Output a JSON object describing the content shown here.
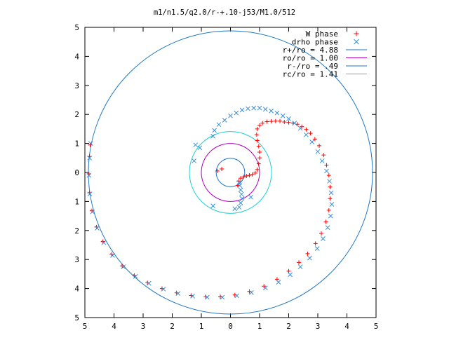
{
  "chart_data": {
    "type": "scatter",
    "title": "m1/n1.5/q2.0/r-+.10-j53/M1.0/512",
    "xlim": [
      -5,
      5
    ],
    "ylim": [
      -5,
      5
    ],
    "x_ticks": [
      -5,
      -4,
      -3,
      -2,
      -1,
      0,
      1,
      2,
      3,
      4,
      5
    ],
    "y_ticks": [
      -5,
      -4,
      -3,
      -2,
      -1,
      0,
      1,
      2,
      3,
      4,
      5
    ],
    "x_tick_labels": [
      "5",
      "4",
      "3",
      "2",
      "1",
      "0",
      "1",
      "2",
      "3",
      "4",
      "5"
    ],
    "y_tick_labels": [
      "5",
      "4",
      "3",
      "2",
      "1",
      "0",
      "1",
      "2",
      "3",
      "4",
      "5"
    ],
    "grid": false,
    "legend_position": "top-right",
    "series": [
      {
        "name": "W phase",
        "kind": "points",
        "marker": "plus",
        "color": "#ff0000",
        "points": [
          [
            0.25,
            -0.45
          ],
          [
            0.28,
            -0.3
          ],
          [
            0.35,
            -0.2
          ],
          [
            0.45,
            -0.15
          ],
          [
            0.55,
            -0.12
          ],
          [
            0.65,
            -0.1
          ],
          [
            0.75,
            -0.07
          ],
          [
            0.85,
            -0.02
          ],
          [
            0.92,
            0.1
          ],
          [
            0.97,
            0.3
          ],
          [
            1.0,
            0.5
          ],
          [
            1.0,
            0.7
          ],
          [
            0.97,
            0.9
          ],
          [
            0.92,
            1.1
          ],
          [
            0.9,
            1.3
          ],
          [
            0.92,
            1.5
          ],
          [
            1.0,
            1.62
          ],
          [
            1.1,
            1.7
          ],
          [
            1.25,
            1.75
          ],
          [
            1.4,
            1.76
          ],
          [
            1.55,
            1.77
          ],
          [
            1.7,
            1.77
          ],
          [
            1.85,
            1.74
          ],
          [
            2.0,
            1.72
          ],
          [
            2.15,
            1.7
          ],
          [
            2.3,
            1.66
          ],
          [
            2.45,
            1.58
          ],
          [
            2.6,
            1.48
          ],
          [
            2.75,
            1.35
          ],
          [
            2.9,
            1.15
          ],
          [
            3.05,
            0.92
          ],
          [
            3.2,
            0.6
          ],
          [
            3.3,
            0.25
          ],
          [
            3.38,
            -0.1
          ],
          [
            3.42,
            -0.5
          ],
          [
            3.42,
            -0.9
          ],
          [
            3.38,
            -1.3
          ],
          [
            3.28,
            -1.7
          ],
          [
            3.12,
            -2.1
          ],
          [
            2.92,
            -2.45
          ],
          [
            2.65,
            -2.8
          ],
          [
            2.35,
            -3.1
          ],
          [
            2.0,
            -3.4
          ],
          [
            1.6,
            -3.68
          ],
          [
            1.15,
            -3.92
          ],
          [
            0.65,
            -4.1
          ],
          [
            0.15,
            -4.22
          ],
          [
            -0.35,
            -4.28
          ],
          [
            -0.85,
            -4.28
          ],
          [
            -1.35,
            -4.24
          ],
          [
            -1.85,
            -4.15
          ],
          [
            -2.35,
            -4.0
          ],
          [
            -2.85,
            -3.8
          ],
          [
            -3.3,
            -3.55
          ],
          [
            -3.72,
            -3.22
          ],
          [
            -4.08,
            -2.82
          ],
          [
            -4.38,
            -2.38
          ],
          [
            -4.6,
            -1.88
          ],
          [
            -4.76,
            -1.32
          ],
          [
            -4.84,
            -0.7
          ],
          [
            -4.86,
            -0.05
          ],
          [
            -4.84,
            0.55
          ],
          [
            -4.82,
            0.95
          ],
          [
            -0.45,
            0.05
          ],
          [
            -0.3,
            0.12
          ]
        ]
      },
      {
        "name": "drho phase",
        "kind": "points",
        "marker": "cross",
        "color": "#3a8fd9",
        "points": [
          [
            0.3,
            -1.2
          ],
          [
            0.35,
            -1.05
          ],
          [
            0.4,
            -0.9
          ],
          [
            0.38,
            -0.75
          ],
          [
            0.35,
            -0.6
          ],
          [
            0.32,
            -0.45
          ],
          [
            0.3,
            -0.35
          ],
          [
            0.7,
            -0.85
          ],
          [
            -0.6,
            1.25
          ],
          [
            -0.55,
            1.45
          ],
          [
            -0.4,
            1.65
          ],
          [
            -0.2,
            1.8
          ],
          [
            0.0,
            1.95
          ],
          [
            0.2,
            2.05
          ],
          [
            0.4,
            2.15
          ],
          [
            0.6,
            2.2
          ],
          [
            0.8,
            2.22
          ],
          [
            1.0,
            2.22
          ],
          [
            1.2,
            2.18
          ],
          [
            1.4,
            2.12
          ],
          [
            1.6,
            2.05
          ],
          [
            1.8,
            1.95
          ],
          [
            2.0,
            1.85
          ],
          [
            2.2,
            1.7
          ],
          [
            2.4,
            1.52
          ],
          [
            2.6,
            1.3
          ],
          [
            2.8,
            1.05
          ],
          [
            3.0,
            0.72
          ],
          [
            3.15,
            0.4
          ],
          [
            3.3,
            0.05
          ],
          [
            3.4,
            -0.3
          ],
          [
            3.46,
            -0.7
          ],
          [
            3.48,
            -1.1
          ],
          [
            3.44,
            -1.5
          ],
          [
            3.34,
            -1.9
          ],
          [
            3.18,
            -2.28
          ],
          [
            2.98,
            -2.62
          ],
          [
            2.72,
            -2.95
          ],
          [
            2.4,
            -3.25
          ],
          [
            2.05,
            -3.52
          ],
          [
            1.65,
            -3.78
          ],
          [
            1.2,
            -3.98
          ],
          [
            0.72,
            -4.14
          ],
          [
            0.22,
            -4.25
          ],
          [
            -0.28,
            -4.3
          ],
          [
            -0.8,
            -4.3
          ],
          [
            -1.3,
            -4.26
          ],
          [
            -1.8,
            -4.17
          ],
          [
            -2.3,
            -4.02
          ],
          [
            -2.8,
            -3.82
          ],
          [
            -3.26,
            -3.58
          ],
          [
            -3.68,
            -3.25
          ],
          [
            -4.05,
            -2.86
          ],
          [
            -4.35,
            -2.42
          ],
          [
            -4.58,
            -1.92
          ],
          [
            -4.74,
            -1.36
          ],
          [
            -4.83,
            -0.74
          ],
          [
            -4.86,
            -0.1
          ],
          [
            -4.84,
            0.5
          ],
          [
            -4.8,
            1.0
          ],
          [
            -1.2,
            0.95
          ],
          [
            -1.05,
            0.85
          ],
          [
            -1.25,
            0.4
          ],
          [
            -0.6,
            -1.15
          ],
          [
            0.15,
            -1.25
          ]
        ]
      },
      {
        "name": "r+/ro = 4.88",
        "kind": "circle",
        "radius": 4.88,
        "color": "#1f77c4"
      },
      {
        "name": "ro/ro = 1.00",
        "kind": "circle",
        "radius": 1.0,
        "color": "#b000c0"
      },
      {
        "name": "r-/ro = .49",
        "kind": "circle",
        "radius": 0.49,
        "color": "#1f77c4"
      },
      {
        "name": "rc/ro = 1.41",
        "kind": "circle",
        "radius": 1.41,
        "color": "#20d0d0"
      }
    ]
  }
}
